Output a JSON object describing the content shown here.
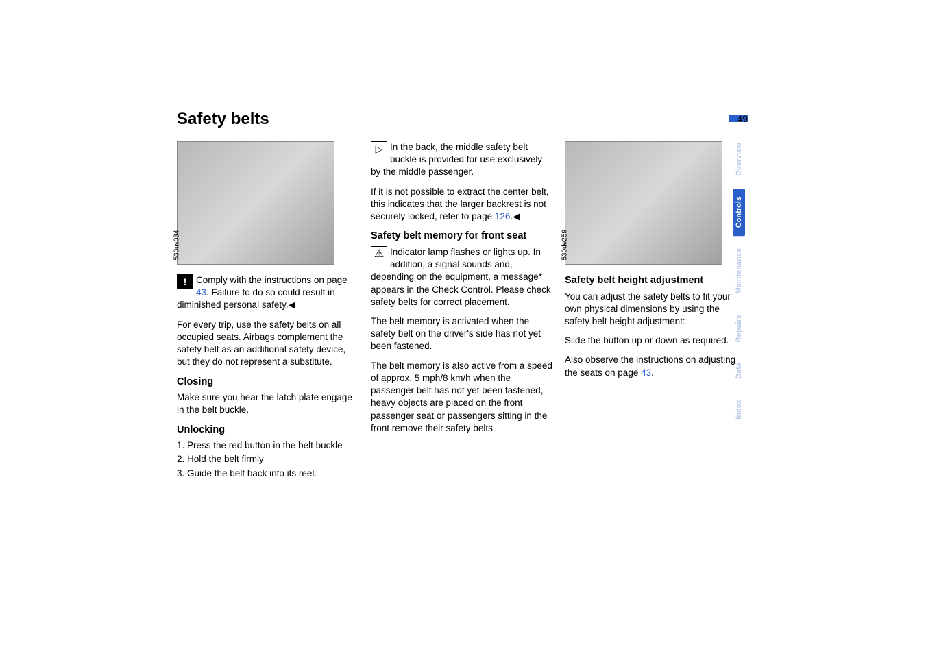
{
  "page_number": "49",
  "title": "Safety belts",
  "col1": {
    "img_id": "530us034",
    "warn_text_1": "Comply with the instructions on page ",
    "warn_link": "43",
    "warn_text_2": ". Failure to do so could result in diminished personal safety.",
    "para1": "For every trip, use the safety belts on all occupied seats. Airbags complement the safety belt as an additional safety device, but they do not represent a substitute.",
    "closing_h": "Closing",
    "closing_p": "Make sure you hear the latch plate engage in the belt buckle.",
    "unlock_h": "Unlocking",
    "unlock_1": "1. Press the red button in the belt buckle",
    "unlock_2": "2. Hold the belt firmly",
    "unlock_3": "3. Guide the belt back into its reel."
  },
  "col2": {
    "tri_text_1": "In the back, the middle safety belt buckle is provided for use exclusively by the middle passenger.",
    "tri_text_2a": "If it is not possible to extract the center belt, this indicates that the larger backrest is not securely locked, refer to page ",
    "tri_link": "126",
    "tri_text_2b": ".",
    "mem_h": "Safety belt memory for front seat",
    "mem_p1": "Indicator lamp flashes or lights up. In addition, a signal sounds and, depending on the equipment, a message* appears in the Check Control. Please check safety belts for correct placement.",
    "mem_p2": "The belt memory is activated when the safety belt on the driver's side has not yet been fastened.",
    "mem_p3": "The belt memory is also active from a speed of approx. 5 mph/8 km/h when the passenger belt has not yet been fastened, heavy objects are placed on the front passenger seat or passengers sitting in the front remove their safety belts."
  },
  "col3": {
    "img_id": "530de259",
    "height_h": "Safety belt height adjustment",
    "height_p1": "You can adjust the safety belts to fit your own physical dimensions by using the safety belt height adjustment:",
    "height_p2": "Slide the button up or down as required.",
    "height_p3a": "Also observe the instructions on adjusting the seats on page ",
    "height_link": "43",
    "height_p3b": "."
  },
  "nav": {
    "overview": "Overview",
    "controls": "Controls",
    "maintenance": "Maintenance",
    "repairs": "Repairs",
    "data": "Data",
    "index": "Index"
  }
}
